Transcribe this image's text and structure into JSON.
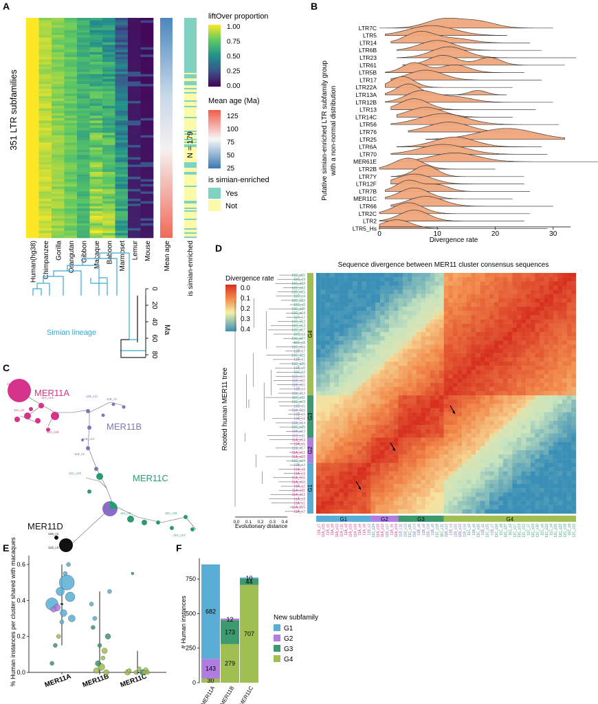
{
  "panels": {
    "a": "A",
    "b": "B",
    "c": "C",
    "d": "D",
    "e": "E",
    "f": "F"
  },
  "panel_a": {
    "ylabel": "351 LTR subfamilies",
    "species": [
      "Human(hg38)",
      "Chimpanzee",
      "Gorilla",
      "Orangutan",
      "Gibbon",
      "Macaque",
      "Baboon",
      "Marmoset",
      "Lemur",
      "Mouse"
    ],
    "mean_age_label": "Mean age",
    "simian_label": "is simian-enriched",
    "n_label": "N = 179",
    "lineage_label": "Simian lineage",
    "ma_label": "Ma",
    "ma_ticks": [
      "0",
      "20",
      "40",
      "60",
      "80"
    ],
    "legend_lift_title": "liftOver proportion",
    "legend_lift_ticks": [
      "1.00",
      "0.75",
      "0.50",
      "0.25",
      "0.00"
    ],
    "legend_age_title": "Mean age (Ma)",
    "legend_age_ticks": [
      "125",
      "100",
      "75",
      "50",
      "25"
    ],
    "legend_sim_title": "is simian-enriched",
    "legend_sim_items": [
      "Yes",
      "Not"
    ],
    "colors": {
      "yes": "#7fd1c0",
      "not": "#fafaa8"
    }
  },
  "chart_data": [
    {
      "type": "ridgeline",
      "panel": "B",
      "ylabel": "Putative simian-enriched LTR subfamily group with a non-normal distribution",
      "xlabel": "Divergence rate",
      "xticks": [
        "0",
        "10",
        "20",
        "30"
      ],
      "xlim": [
        0,
        33
      ],
      "categories": [
        "LTR7C",
        "LTR5",
        "LTR14",
        "LTR6B",
        "LTR23",
        "LTR61",
        "LTR5B",
        "LTR17",
        "LTR22A",
        "LTR13A",
        "LTR12B",
        "LTR13",
        "LTR14C",
        "LTR56",
        "LTR76",
        "LTR25",
        "LTR6A",
        "LTR70",
        "MER61E",
        "LTR2B",
        "LTR7Y",
        "LTR12F",
        "LTR7B",
        "MER11C",
        "LTR66",
        "LTR2C",
        "LTR2",
        "LTR5_Hs"
      ],
      "series": [
        {
          "peaks": [
            [
              11,
              0.8,
              3
            ],
            [
              17,
              0.6,
              3
            ]
          ],
          "range": [
            0,
            30
          ]
        },
        {
          "peaks": [
            [
              9,
              0.9,
              4
            ]
          ],
          "range": [
            1,
            22
          ]
        },
        {
          "peaks": [
            [
              7,
              1.0,
              2.5
            ],
            [
              13,
              0.4,
              3
            ]
          ],
          "range": [
            2,
            26
          ]
        },
        {
          "peaks": [
            [
              10,
              0.9,
              3
            ]
          ],
          "range": [
            3,
            28
          ]
        },
        {
          "peaks": [
            [
              12,
              1.0,
              3
            ]
          ],
          "range": [
            3,
            34
          ]
        },
        {
          "peaks": [
            [
              11,
              0.9,
              2.5
            ],
            [
              19,
              0.7,
              2
            ]
          ],
          "range": [
            4,
            32
          ]
        },
        {
          "peaks": [
            [
              6,
              0.9,
              2
            ],
            [
              13,
              0.7,
              2.5
            ]
          ],
          "range": [
            1,
            25
          ]
        },
        {
          "peaks": [
            [
              8,
              0.9,
              3
            ]
          ],
          "range": [
            2,
            28
          ]
        },
        {
          "peaks": [
            [
              4,
              1.0,
              2
            ]
          ],
          "range": [
            1,
            23
          ]
        },
        {
          "peaks": [
            [
              5,
              1.0,
              2
            ],
            [
              17,
              0.4,
              1.5
            ]
          ],
          "range": [
            1,
            22
          ]
        },
        {
          "peaks": [
            [
              7,
              1.0,
              2.5
            ],
            [
              13,
              0.5,
              3
            ]
          ],
          "range": [
            1,
            30
          ]
        },
        {
          "peaks": [
            [
              6,
              1.0,
              2.5
            ]
          ],
          "range": [
            2,
            27
          ]
        },
        {
          "peaks": [
            [
              8,
              0.9,
              3
            ]
          ],
          "range": [
            3,
            23
          ]
        },
        {
          "peaks": [
            [
              11,
              1.0,
              4
            ]
          ],
          "range": [
            2,
            31
          ]
        },
        {
          "peaks": [
            [
              12,
              0.9,
              3.5
            ]
          ],
          "range": [
            5,
            26
          ]
        },
        {
          "peaks": [
            [
              22,
              1.0,
              5
            ]
          ],
          "range": [
            8,
            32
          ]
        },
        {
          "peaks": [
            [
              13,
              0.9,
              3.5
            ]
          ],
          "range": [
            3,
            28
          ]
        },
        {
          "peaks": [
            [
              11,
              0.9,
              4
            ]
          ],
          "range": [
            2,
            29
          ]
        },
        {
          "peaks": [
            [
              13,
              0.8,
              4
            ]
          ],
          "range": [
            3,
            38
          ]
        },
        {
          "peaks": [
            [
              5,
              1.0,
              2.5
            ]
          ],
          "range": [
            0,
            20
          ]
        },
        {
          "peaks": [
            [
              8,
              1.0,
              2
            ]
          ],
          "range": [
            2,
            25
          ]
        },
        {
          "peaks": [
            [
              6,
              0.9,
              3
            ]
          ],
          "range": [
            2,
            25
          ]
        },
        {
          "peaks": [
            [
              5,
              1.0,
              2
            ],
            [
              10,
              0.6,
              2
            ]
          ],
          "range": [
            1,
            26
          ]
        },
        {
          "peaks": [
            [
              6,
              1.0,
              2.5
            ]
          ],
          "range": [
            1,
            23
          ]
        },
        {
          "peaks": [
            [
              8,
              0.9,
              3
            ]
          ],
          "range": [
            2,
            30
          ]
        },
        {
          "peaks": [
            [
              5,
              1.0,
              2.5
            ]
          ],
          "range": [
            0,
            26
          ]
        },
        {
          "peaks": [
            [
              6,
              1.0,
              2.5
            ]
          ],
          "range": [
            0,
            25
          ]
        },
        {
          "peaks": [
            [
              3,
              0.8,
              2.5
            ]
          ],
          "range": [
            0,
            29
          ]
        }
      ]
    },
    {
      "type": "scatter",
      "panel": "E",
      "ylabel": "% Human instances per cluster shared with macaques",
      "categories": [
        "MER11A",
        "MER11B",
        "MER11C"
      ],
      "yticks": [
        "0.0",
        "0.2",
        "0.4",
        "0.6"
      ],
      "ylim": [
        0,
        0.65
      ],
      "points": [
        [
          0,
          0.38,
          "G1",
          9
        ],
        [
          0,
          0.42,
          "G1",
          7
        ],
        [
          0,
          0.5,
          "G1",
          11
        ],
        [
          0,
          0.33,
          "G1",
          5
        ],
        [
          0,
          0.45,
          "G1",
          6
        ],
        [
          0,
          0.36,
          "G2",
          5
        ],
        [
          0,
          0.35,
          "G2",
          4
        ],
        [
          0,
          0.3,
          "G1",
          5
        ],
        [
          0,
          0.6,
          "G1",
          3
        ],
        [
          0,
          0.55,
          "G1",
          3
        ],
        [
          0,
          0.28,
          "G1",
          3
        ],
        [
          0,
          0.2,
          "G4",
          3
        ],
        [
          0,
          0.15,
          "G3",
          3
        ],
        [
          0,
          0.05,
          "G3",
          3
        ],
        [
          1,
          0.2,
          "G3",
          4
        ],
        [
          1,
          0.12,
          "G4",
          4
        ],
        [
          1,
          0.03,
          "G4",
          5
        ],
        [
          1,
          0.05,
          "G3",
          4
        ],
        [
          1,
          0.3,
          "G1",
          3
        ],
        [
          1,
          0.38,
          "G1",
          3
        ],
        [
          1,
          0.45,
          "G1",
          3
        ],
        [
          1,
          0.0,
          "G4",
          4
        ],
        [
          1,
          0.08,
          "G4",
          3
        ],
        [
          1,
          0.15,
          "G3",
          3
        ],
        [
          1,
          0.01,
          "G4",
          4
        ],
        [
          1,
          0.25,
          "G3",
          3
        ],
        [
          2,
          0.0,
          "G4",
          4
        ],
        [
          2,
          0.01,
          "G4",
          4
        ],
        [
          2,
          0.0,
          "G3",
          4
        ],
        [
          2,
          0.02,
          "G4",
          3
        ],
        [
          2,
          0.0,
          "G4",
          3
        ],
        [
          2,
          0.55,
          "G3",
          2
        ],
        [
          2,
          0.01,
          "G4",
          3
        ],
        [
          2,
          0.0,
          "G4",
          3
        ],
        [
          2,
          0.0,
          "G4",
          3
        ]
      ]
    },
    {
      "type": "bar",
      "panel": "F",
      "ylabel": "# Human instances",
      "categories": [
        "MER11A",
        "MER11B",
        "MER11C"
      ],
      "yticks": [
        "0",
        "250",
        "500",
        "750"
      ],
      "ylim": [
        0,
        900
      ],
      "series": [
        {
          "name": "G4",
          "values": [
            30,
            279,
            707
          ],
          "labels": [
            "30",
            "279",
            "707"
          ]
        },
        {
          "name": "G3",
          "values": [
            0,
            173,
            44
          ],
          "labels": [
            "",
            "173",
            "44"
          ]
        },
        {
          "name": "G2",
          "values": [
            143,
            12,
            0
          ],
          "labels": [
            "143",
            "12",
            ""
          ]
        },
        {
          "name": "G1",
          "values": [
            682,
            0,
            10
          ],
          "labels": [
            "682",
            "",
            "10"
          ]
        }
      ],
      "legend_title": "New subfamily",
      "legend_items": [
        "G1",
        "G2",
        "G3",
        "G4"
      ]
    }
  ],
  "group_colors": {
    "G1": "#5aaed6",
    "G2": "#b07ee0",
    "G3": "#3d9a6e",
    "G4": "#9fbf52"
  },
  "panel_c": {
    "labels": {
      "a": "MER11A",
      "b": "MER11B",
      "c": "MER11C",
      "d": "MER11D"
    },
    "colors": {
      "a": "#d6338a",
      "b": "#7878b8",
      "c": "#2a9a74",
      "d": "#111111"
    }
  },
  "panel_d": {
    "title": "Sequence divergence between MER11 cluster consensus sequences",
    "legend_title": "Divergence rate",
    "legend_ticks": [
      "0.0",
      "0.1",
      "0.2",
      "0.3",
      "0.4"
    ],
    "tree_label": "Rooted human MER11 tree",
    "tree_axis_label": "Evolutionary distance",
    "tree_ticks": [
      "0.0",
      "0.1",
      "0.2",
      "0.3",
      "0.4"
    ],
    "groups": [
      "G1",
      "G2",
      "G3",
      "G4"
    ],
    "row_labels": [
      "11C_c10",
      "11C_c9",
      "11C_c18",
      "11C_c22",
      "11C_c15",
      "11C_c4",
      "11C_c22",
      "11C_c6",
      "11C_c30",
      "11C_c14",
      "11C_c7",
      "11C_c12",
      "11C_c13",
      "11C_c17",
      "11C_c3",
      "11C_c27",
      "11C_c8",
      "11C_c16",
      "11B_c7",
      "11C_c21",
      "11B_c1",
      "11C_c26",
      "11B_c6",
      "11C_c2",
      "11B_c16",
      "11B_c10",
      "11B_c15",
      "11B_c4",
      "11B_c12",
      "11C_c11",
      "11C_c19",
      "11B_c5",
      "11B_c18",
      "11B_c9",
      "11B_c8",
      "11B_c14",
      "11C_c25",
      "11B_c13",
      "11B_c11",
      "11A_c14",
      "11A_c6",
      "11B_c17",
      "11A_c12",
      "11A_c18",
      "11C_c24",
      "11B_c3",
      "11A_c8",
      "11A_c4",
      "11A_c16",
      "11A_c10",
      "11A_c2",
      "11A_c11",
      "11A_c13",
      "11A_c9",
      "11A_c1",
      "11A_c15",
      "11A_c7"
    ]
  }
}
